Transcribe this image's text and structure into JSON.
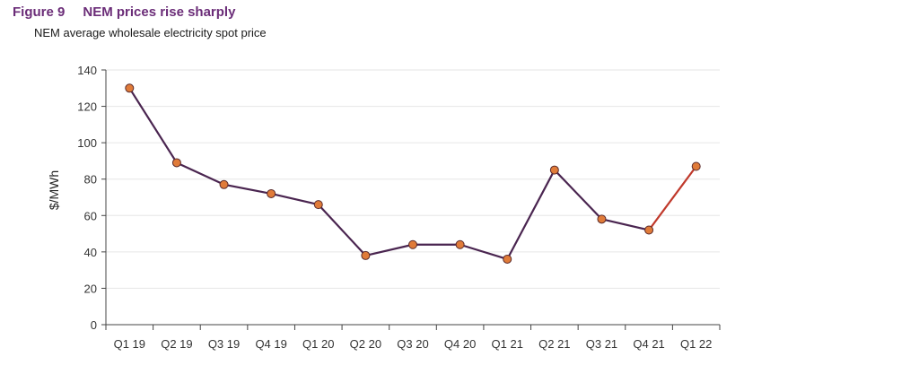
{
  "figure": {
    "number": "Figure 9",
    "title": "NEM prices rise sharply",
    "subtitle": "NEM average wholesale electricity spot price"
  },
  "chart_data": {
    "type": "line",
    "title": "NEM prices rise sharply",
    "subtitle": "NEM average wholesale electricity spot price",
    "xlabel": "",
    "ylabel": "$/MWh",
    "categories": [
      "Q1 19",
      "Q2 19",
      "Q3 19",
      "Q4 19",
      "Q1 20",
      "Q2 20",
      "Q3 20",
      "Q4 20",
      "Q1 21",
      "Q2 21",
      "Q3 21",
      "Q4 21",
      "Q1 22"
    ],
    "series": [
      {
        "values": [
          130,
          89,
          77,
          72,
          66,
          38,
          44,
          44,
          36,
          85,
          58,
          52,
          87
        ],
        "color": "#4a2550",
        "highlight_last_segment_color": "#c0392b"
      }
    ],
    "ylim": [
      0,
      140
    ],
    "yticks": [
      0,
      20,
      40,
      60,
      80,
      100,
      120,
      140
    ],
    "grid": true,
    "legend": "none",
    "marker_color": "#e07b39",
    "marker_edge": "#5a2a2a"
  }
}
